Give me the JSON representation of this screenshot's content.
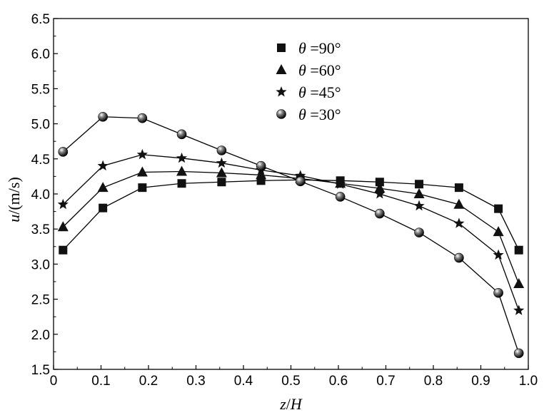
{
  "chart_data": {
    "type": "line",
    "title": "",
    "xlabel": {
      "var": "z",
      "rest": "/",
      "var2": "H"
    },
    "ylabel": {
      "var": "u",
      "rest": "/(m/s)"
    },
    "xlim": [
      0,
      1.0
    ],
    "ylim": [
      1.5,
      6.5
    ],
    "xticks": [
      "0",
      "0.1",
      "0.2",
      "0.3",
      "0.4",
      "0.5",
      "0.6",
      "0.7",
      "0.8",
      "0.9",
      "1.0"
    ],
    "yticks": [
      "1.5",
      "2.0",
      "2.5",
      "3.0",
      "3.5",
      "4.0",
      "4.5",
      "5.0",
      "5.5",
      "6.0",
      "6.5"
    ],
    "grid": false,
    "legend_position": "top-center",
    "x": [
      0.02,
      0.104,
      0.187,
      0.27,
      0.354,
      0.437,
      0.52,
      0.604,
      0.687,
      0.77,
      0.854,
      0.937,
      0.98
    ],
    "series": [
      {
        "name": "θ =90°",
        "symbol": "θ",
        "rest": " =90°",
        "marker": "square",
        "values": [
          3.2,
          3.8,
          4.09,
          4.15,
          4.17,
          4.19,
          4.2,
          4.19,
          4.17,
          4.14,
          4.09,
          3.79,
          3.2
        ]
      },
      {
        "name": "θ =60°",
        "symbol": "θ",
        "rest": " =60°",
        "marker": "triangle",
        "values": [
          3.53,
          4.09,
          4.31,
          4.32,
          4.3,
          4.27,
          4.22,
          4.15,
          4.08,
          4.0,
          3.85,
          3.46,
          2.72
        ]
      },
      {
        "name": "θ =45°",
        "symbol": "θ",
        "rest": " =45°",
        "marker": "star",
        "values": [
          3.85,
          4.4,
          4.56,
          4.51,
          4.44,
          4.34,
          4.26,
          4.14,
          4.0,
          3.83,
          3.58,
          3.13,
          2.34
        ]
      },
      {
        "name": "θ =30°",
        "symbol": "θ",
        "rest": " =30°",
        "marker": "sphere",
        "values": [
          4.6,
          5.1,
          5.08,
          4.85,
          4.62,
          4.4,
          4.18,
          3.96,
          3.72,
          3.45,
          3.09,
          2.59,
          1.73
        ]
      }
    ],
    "colors": {
      "line": "#000000",
      "marker": "#111111",
      "axis": "#000000"
    }
  }
}
